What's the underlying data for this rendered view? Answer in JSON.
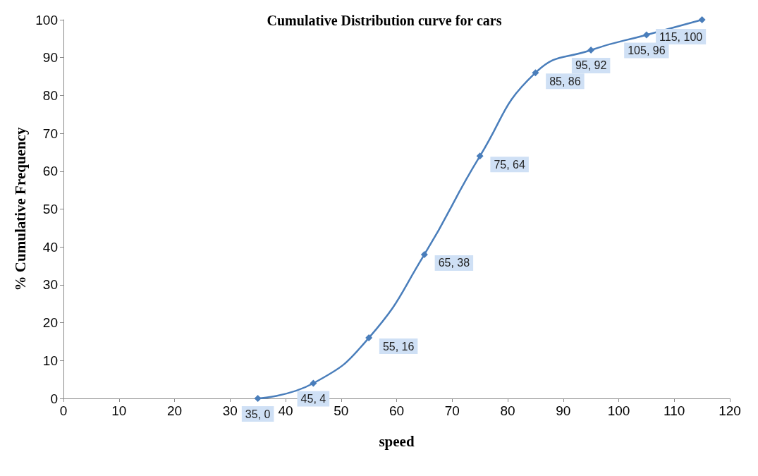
{
  "chart_data": {
    "type": "line",
    "title": "Cumulative Distribution curve for cars",
    "xlabel": "speed",
    "ylabel": "% Cumulative Frequency",
    "x": [
      35,
      45,
      55,
      65,
      75,
      85,
      95,
      105,
      115
    ],
    "series": [
      {
        "color": "#4a7ebb",
        "values": [
          0,
          4,
          16,
          38,
          64,
          86,
          92,
          96,
          100
        ],
        "value_labels": [
          "35, 0",
          "45, 4",
          "55, 16",
          "65, 38",
          "75, 64",
          "85, 86",
          "95, 92",
          "105, 96",
          "115, 100"
        ]
      }
    ],
    "xlim": [
      0,
      120
    ],
    "xticks": [
      0,
      10,
      20,
      30,
      40,
      50,
      60,
      70,
      80,
      90,
      100,
      110,
      120
    ],
    "ylim": [
      0,
      100
    ],
    "yticks": [
      0,
      10,
      20,
      30,
      40,
      50,
      60,
      70,
      80,
      90,
      100
    ],
    "grid": false,
    "marker": "diamond",
    "line_style": "solid"
  }
}
